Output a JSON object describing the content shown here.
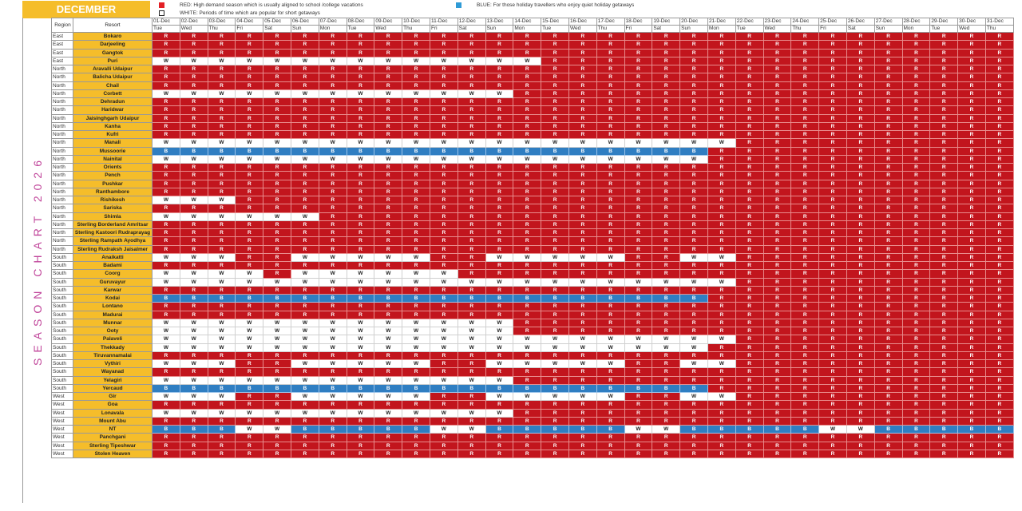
{
  "header": {
    "month": "DECEMBER"
  },
  "legend": [
    {
      "key": "red",
      "text": "RED: High demand season which is usually aligned to school /college vacations",
      "color": "#e32026"
    },
    {
      "key": "white",
      "text": "WHITE: Periods of time which are popular for short getaways",
      "color": "#ffffff"
    },
    {
      "key": "blue",
      "text": "BLUE: For those holiday travellers who enjoy quiet holiday getaways",
      "color": "#2f7ec2"
    }
  ],
  "title": "SEASON CHART 2026",
  "chart_data": {
    "type": "table",
    "columns": {
      "region": "Region",
      "resort": "Resort"
    },
    "dates": [
      "01-Dec",
      "02-Dec",
      "03-Dec",
      "04-Dec",
      "05-Dec",
      "06-Dec",
      "07-Dec",
      "08-Dec",
      "09-Dec",
      "10-Dec",
      "11-Dec",
      "12-Dec",
      "13-Dec",
      "14-Dec",
      "15-Dec",
      "16-Dec",
      "17-Dec",
      "18-Dec",
      "19-Dec",
      "20-Dec",
      "21-Dec",
      "22-Dec",
      "23-Dec",
      "24-Dec",
      "25-Dec",
      "26-Dec",
      "27-Dec",
      "28-Dec",
      "29-Dec",
      "30-Dec",
      "31-Dec"
    ],
    "weekdays": [
      "Tue",
      "Wed",
      "Thu",
      "Fri",
      "Sat",
      "Sun",
      "Mon",
      "Tue",
      "Wed",
      "Thu",
      "Fri",
      "Sat",
      "Sun",
      "Mon",
      "Tue",
      "Wed",
      "Thu",
      "Fri",
      "Sat",
      "Sun",
      "Mon",
      "Tue",
      "Wed",
      "Thu",
      "Fri",
      "Sat",
      "Sun",
      "Mon",
      "Tue",
      "Wed",
      "Thu"
    ],
    "colors": {
      "R": "#c2151d",
      "W": "#ffffff",
      "B": "#2f7ec2"
    },
    "rows": [
      {
        "region": "East",
        "resort": "Bokaro",
        "codes": "RRRRRRRRRRRRRRRRRRRRRRRRRRRRRRR"
      },
      {
        "region": "East",
        "resort": "Darjeeling",
        "codes": "RRRRRRRRRRRRRRRRRRRRRRRRRRRRRRR"
      },
      {
        "region": "East",
        "resort": "Gangtok",
        "codes": "RRRRRRRRRRRRRRRRRRRRRRRRRRRRRRR"
      },
      {
        "region": "East",
        "resort": "Puri",
        "codes": "WWWWWWWWWWWWWWRRRRRRRRRRRRRRRRR"
      },
      {
        "region": "North",
        "resort": "Aravalli Udaipur",
        "codes": "RRRRRRRRRRRRRRRRRRRRRRRRRRRRRRR"
      },
      {
        "region": "North",
        "resort": "Balicha Udaipur",
        "codes": "RRRRRRRRRRRRRRRRRRRRRRRRRRRRRRR"
      },
      {
        "region": "North",
        "resort": "Chail",
        "codes": "RRRRRRRRRRRRRRRRRRRRRRRRRRRRRRR"
      },
      {
        "region": "North",
        "resort": "Corbett",
        "codes": "WWWWWWWWWWWWWRRRRRRRRRRRRRRRRRR"
      },
      {
        "region": "North",
        "resort": "Dehradun",
        "codes": "RRRRRRRRRRRRRRRRRRRRRRRRRRRRRRR"
      },
      {
        "region": "North",
        "resort": "Haridwar",
        "codes": "RRRRRRRRRRRRRRRRRRRRRRRRRRRRRRR"
      },
      {
        "region": "North",
        "resort": "Jaisinghgarh Udaipur",
        "codes": "RRRRRRRRRRRRRRRRRRRRRRRRRRRRRRR"
      },
      {
        "region": "North",
        "resort": "Kanha",
        "codes": "RRRRRRRRRRRRRRRRRRRRRRRRRRRRRRR"
      },
      {
        "region": "North",
        "resort": "Kufri",
        "codes": "RRRRRRRRRRRRRRRRRRRRRRRRRRRRRRR"
      },
      {
        "region": "North",
        "resort": "Manali",
        "codes": "WWWWWWWWWWWWWWWWWWWWWRRRRRRRRRR"
      },
      {
        "region": "North",
        "resort": "Mussoorie",
        "codes": "BBBBBBBBBBBBBBBBBBBBRRRRRRRRRRR"
      },
      {
        "region": "North",
        "resort": "Nainital",
        "codes": "WWWWWWWWWWWWWWWWWWWWRRRRRRRRRRR"
      },
      {
        "region": "North",
        "resort": "Orients",
        "codes": "RRRRRRRRRRRRRRRRRRRRRRRRRRRRRRR"
      },
      {
        "region": "North",
        "resort": "Pench",
        "codes": "RRRRRRRRRRRRRRRRRRRRRRRRRRRRRRR"
      },
      {
        "region": "North",
        "resort": "Pushkar",
        "codes": "RRRRRRRRRRRRRRRRRRRRRRRRRRRRRRR"
      },
      {
        "region": "North",
        "resort": "Ranthambore",
        "codes": "RRRRRRRRRRRRRRRRRRRRRRRRRRRRRRR"
      },
      {
        "region": "North",
        "resort": "Rishikesh",
        "codes": "WWWRRRRRRRRRRRRRRRRRRRRRRRRRRRR"
      },
      {
        "region": "North",
        "resort": "Sariska",
        "codes": "RRRRRRRRRRRRRRRRRRRRRRRRRRRRRRR"
      },
      {
        "region": "North",
        "resort": "Shimla",
        "codes": "WWWWWWRRRRRRRRRRRRRRRRRRRRRRRRR"
      },
      {
        "region": "North",
        "resort": "Sterling Borderland Amritsar",
        "codes": "RRRRRRRRRRRRRRRRRRRRRRRRRRRRRRR"
      },
      {
        "region": "North",
        "resort": "Sterling Kastoori Rudraprayag",
        "codes": "RRRRRRRRRRRRRRRRRRRRRRRRRRRRRRR"
      },
      {
        "region": "North",
        "resort": "Sterling Rampath Ayodhya",
        "codes": "RRRRRRRRRRRRRRRRRRRRRRRRRRRRRRR"
      },
      {
        "region": "North",
        "resort": "Sterling Rudraksh Jaisalmer",
        "codes": "RRRRRRRRRRRRRRRRRRRRRRRRRRRRRRR"
      },
      {
        "region": "South",
        "resort": "Anaikatti",
        "codes": "WWWRRWWWWWRRWWWWWRRWWRRRRRRRRRR"
      },
      {
        "region": "South",
        "resort": "Badami",
        "codes": "RRRRRRRRRRRRRRRRRRRRRRRRRRRRRRR"
      },
      {
        "region": "South",
        "resort": "Coorg",
        "codes": "WWWWRWWWWWWRRRRRRRRRRRRRRRRRRRR"
      },
      {
        "region": "South",
        "resort": "Guruvayur",
        "codes": "WWWWWWWWWWWWWWWWWWWWWRRRRRRRRRR"
      },
      {
        "region": "South",
        "resort": "Karwar",
        "codes": "RRRRRRRRRRRRRRRRRRRRRRRRRRRRRRR"
      },
      {
        "region": "South",
        "resort": "Kodai",
        "codes": "BBBBBBBBBBBBBBBBBBBBRRRRRRRRRRR"
      },
      {
        "region": "South",
        "resort": "Lontano",
        "codes": "RRRRRRRRRRRRRRRRRRRRRRRRRRRRRRR"
      },
      {
        "region": "South",
        "resort": "Madurai",
        "codes": "RRRRRRRRRRRRRRRRRRRRRRRRRRRRRRR"
      },
      {
        "region": "South",
        "resort": "Munnar",
        "codes": "WWWWWWWWWWWWWRRRRRRRRRRRRRRRRRR"
      },
      {
        "region": "South",
        "resort": "Ooty",
        "codes": "WWWWWWWWWWWWWRRRRRRRRRRRRRRRRRR"
      },
      {
        "region": "South",
        "resort": "Palaveli",
        "codes": "WWWWWWWWWWWWWWWWWWWWWRRRRRRRRRR"
      },
      {
        "region": "South",
        "resort": "Thekkady",
        "codes": "WWWWWWWWWWWWWWWWWWWWRRRRRRRRRRR"
      },
      {
        "region": "South",
        "resort": "Tiruvannamalai",
        "codes": "RRRRRRRRRRRRRRRRRRRRRRRRRRRRRRR"
      },
      {
        "region": "South",
        "resort": "Vythiri",
        "codes": "WWWRRWWWWWRRWWWWWRRWWRRRRRRRRRR"
      },
      {
        "region": "South",
        "resort": "Wayanad",
        "codes": "RRRRRRRRRRRRRRRRRRRRRRRRRRRRRRR"
      },
      {
        "region": "South",
        "resort": "Yelagiri",
        "codes": "WWWWWWWWWWWWWRRRRRRRRRRRRRRRRRR"
      },
      {
        "region": "South",
        "resort": "Yercaud",
        "codes": "BBBBBBBBBBBBBBBBBBBBRRRRRRRRRRR"
      },
      {
        "region": "West",
        "resort": "Gir",
        "codes": "WWWRRWWWWWRRWWWWWRRWWRRRRRRRRRR"
      },
      {
        "region": "West",
        "resort": "Goa",
        "codes": "RRRRRRRRRRRRRRRRRRRRRRRRRRRRRRR"
      },
      {
        "region": "West",
        "resort": "Lonavala",
        "codes": "WWWWWWWWWWWWWRRRRRRRRRRRRRRRRRR"
      },
      {
        "region": "West",
        "resort": "Mount Abu",
        "codes": "RRRRRRRRRRRRRRRRRRRRRRRRRRRRRRR"
      },
      {
        "region": "West",
        "resort": "NT",
        "codes": "BBBWWBBBBBWWBBBBBWWBBBBBWWBBBBB"
      },
      {
        "region": "West",
        "resort": "Panchgani",
        "codes": "RRRRRRRRRRRRRRRRRRRRRRRRRRRRRRR"
      },
      {
        "region": "West",
        "resort": "Sterling Tipeshwar",
        "codes": "RRRRRRRRRRRRRRRRRRRRRRRRRRRRRRR"
      },
      {
        "region": "West",
        "resort": "Stolen Heaven",
        "codes": "RRRRRRRRRRRRRRRRRRRRRRRRRRRRRRR"
      }
    ]
  }
}
